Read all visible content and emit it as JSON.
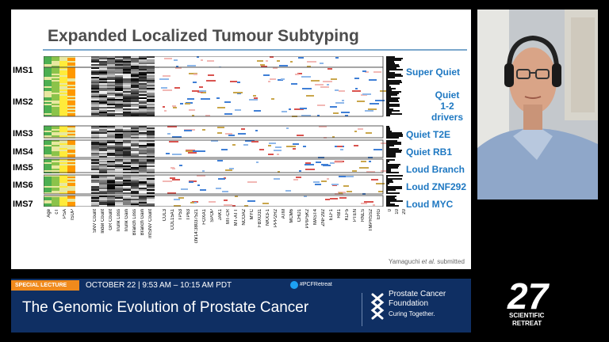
{
  "slide": {
    "title": "Expanded Localized Tumour Subtyping",
    "footnote_author": "Yamaguchi ",
    "footnote_etal": "et al.",
    "footnote_rest": " submitted",
    "ims_labels": [
      "IMS1",
      "IMS2",
      "IMS3",
      "IMS4",
      "IMS5",
      "IMS6",
      "IMS7"
    ],
    "subtype_labels": [
      "Super Quiet",
      "Quiet\n1-2 drivers",
      "Quiet T2E",
      "Quiet RB1",
      "Loud Branch",
      "Loud ZNF292",
      "Loud MYC"
    ],
    "column_labels": [
      "Age",
      "cT",
      "PSA",
      "ISUP",
      "SNV Count",
      "Indel Count",
      "GR Count",
      "Trunk Loss",
      "Trunk Gain",
      "Branch Loss",
      "Branch Gain",
      "mtSNV Count",
      "CUL3",
      "COL15A1",
      "TP53",
      "TP63",
      "chr14:38037521",
      "FOXA1",
      "SPOP",
      "JAK1",
      "MT-CR",
      "MT-ATT",
      "NCOA2",
      "MYC",
      "FBXO31",
      "NKX3-1",
      "PPP2R2",
      "ATM",
      "MCM6",
      "CHD1",
      "PPIP5K2",
      "MAST4",
      "ZNF292",
      "ELF1",
      "RB1",
      "KLF5",
      "PTEN",
      "RNLS",
      "TMPRSS2",
      "ERG"
    ],
    "bar_axis_ticks": [
      "0",
      "10",
      "20"
    ]
  },
  "lower_third": {
    "tag": "SPECIAL LECTURE",
    "date_time": "OCTOBER 22 | 9:53 AM – 10:15 AM PDT",
    "hashtag": "#PCFRetreat",
    "talk_title": "The Genomic Evolution of Prostate Cancer",
    "org_line1": "Prostate Cancer",
    "org_line2": "Foundation",
    "tagline": "Curing Together."
  },
  "retreat_logo": {
    "number": "27",
    "line1": "SCIENTIFIC",
    "line2": "RETREAT"
  },
  "colors": {
    "accent_blue": "#1e78c2",
    "banner_navy": "#0f2f63",
    "tag_orange": "#f08a1c"
  }
}
